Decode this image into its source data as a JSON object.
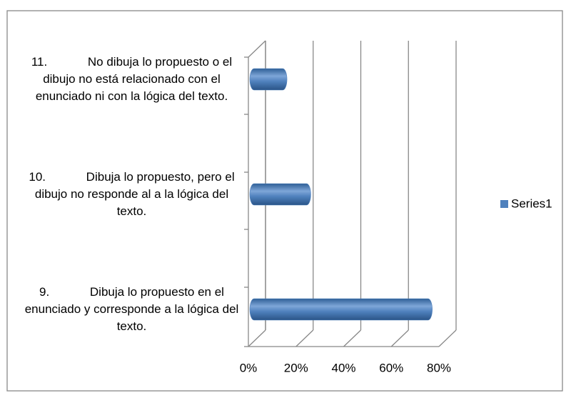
{
  "chart_data": {
    "type": "bar3d_horizontal",
    "categories": [
      "9.            Dibuja lo propuesto en el enunciado y corresponde a la lógica del texto.",
      "10.            Dibuja lo propuesto, pero el dibujo no responde al a la lógica del texto.",
      "11.            No dibuja lo propuesto o el dibujo no está relacionado con el enunciado ni con la lógica del texto."
    ],
    "series": [
      {
        "name": "Series1",
        "color": "#4f81bd",
        "values": [
          73,
          22,
          12
        ]
      }
    ],
    "xlim": [
      0,
      80
    ],
    "xticks": [
      {
        "value": 0,
        "label": "0%"
      },
      {
        "value": 20,
        "label": "20%"
      },
      {
        "value": 40,
        "label": "40%"
      },
      {
        "value": 60,
        "label": "60%"
      },
      {
        "value": 80,
        "label": "80%"
      }
    ],
    "grid": true,
    "legend": "right"
  }
}
